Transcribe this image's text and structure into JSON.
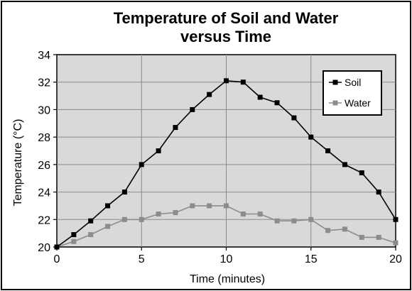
{
  "chart_data": {
    "type": "line",
    "title": [
      "Temperature of Soil and Water",
      "versus Time"
    ],
    "xlabel": "Time (minutes)",
    "ylabel": "Temperature (°C)",
    "xlim": [
      0,
      20
    ],
    "ylim": [
      20,
      34
    ],
    "xticks": [
      0,
      5,
      10,
      15,
      20
    ],
    "yticks": [
      20,
      22,
      24,
      26,
      28,
      30,
      32,
      34
    ],
    "grid": true,
    "legend_position": "top-right",
    "series": [
      {
        "name": "Soil",
        "color": "#000000",
        "x": [
          0,
          1,
          2,
          3,
          4,
          5,
          6,
          7,
          8,
          9,
          10,
          11,
          12,
          13,
          14,
          15,
          16,
          17,
          18,
          19,
          20
        ],
        "y": [
          20.0,
          20.9,
          21.9,
          23.0,
          24.0,
          26.0,
          27.0,
          28.7,
          30.0,
          31.1,
          32.1,
          32.0,
          30.9,
          30.5,
          29.4,
          28.0,
          27.0,
          26.0,
          25.4,
          24.0,
          22.0
        ]
      },
      {
        "name": "Water",
        "color": "#8c8c8c",
        "x": [
          0,
          1,
          2,
          3,
          4,
          5,
          6,
          7,
          8,
          9,
          10,
          11,
          12,
          13,
          14,
          15,
          16,
          17,
          18,
          19,
          20
        ],
        "y": [
          20.0,
          20.4,
          20.9,
          21.5,
          22.0,
          22.0,
          22.4,
          22.5,
          23.0,
          23.0,
          23.0,
          22.4,
          22.4,
          21.9,
          21.9,
          22.0,
          21.2,
          21.3,
          20.7,
          20.7,
          20.3
        ]
      }
    ]
  }
}
